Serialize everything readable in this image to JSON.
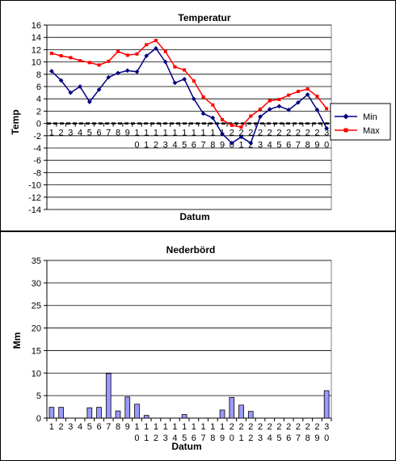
{
  "chart_data": [
    {
      "type": "line",
      "title": "Temperatur",
      "xlabel": "Datum",
      "ylabel": "Temp",
      "ylim": [
        -14,
        16
      ],
      "ystep": 2,
      "grid": true,
      "legend_position": "right",
      "x_tick_labels": [
        [
          "1",
          ""
        ],
        [
          "2",
          ""
        ],
        [
          "3",
          ""
        ],
        [
          "4",
          ""
        ],
        [
          "5",
          ""
        ],
        [
          "6",
          ""
        ],
        [
          "7",
          ""
        ],
        [
          "8",
          ""
        ],
        [
          "9",
          ""
        ],
        [
          "1",
          "0"
        ],
        [
          "1",
          "1"
        ],
        [
          "1",
          "2"
        ],
        [
          "1",
          "3"
        ],
        [
          "1",
          "4"
        ],
        [
          "1",
          "5"
        ],
        [
          "1",
          "6"
        ],
        [
          "1",
          "7"
        ],
        [
          "1",
          "8"
        ],
        [
          "1",
          "9"
        ],
        [
          "2",
          "0"
        ],
        [
          "2",
          "1"
        ],
        [
          "2",
          "2"
        ],
        [
          "2",
          "3"
        ],
        [
          "2",
          "4"
        ],
        [
          "2",
          "5"
        ],
        [
          "2",
          "6"
        ],
        [
          "2",
          "7"
        ],
        [
          "2",
          "8"
        ],
        [
          "2",
          "9"
        ],
        [
          "3",
          "0"
        ]
      ],
      "series": [
        {
          "name": "Min",
          "color": "#000080",
          "values": [
            8.5,
            7,
            5,
            6,
            3.5,
            5.5,
            7.5,
            8.2,
            8.6,
            8.4,
            11,
            12.2,
            10,
            6.6,
            7.2,
            4,
            1.6,
            0.9,
            -1.7,
            -3.2,
            -2.2,
            -3.2,
            1.1,
            2.3,
            2.8,
            2.2,
            3.4,
            4.7,
            2.2,
            -0.8
          ]
        },
        {
          "name": "Max",
          "color": "#ff0000",
          "values": [
            11.4,
            11,
            10.7,
            10.2,
            9.9,
            9.5,
            10.1,
            11.7,
            11.1,
            11.3,
            12.8,
            13.5,
            11.7,
            9.2,
            8.7,
            6.9,
            4.3,
            3,
            0.6,
            -0.3,
            -0.6,
            1.2,
            2.3,
            3.7,
            3.9,
            4.6,
            5.2,
            5.6,
            4.4,
            2.4
          ]
        }
      ]
    },
    {
      "type": "bar",
      "title": "Nederbörd",
      "xlabel": "Datum",
      "ylabel": "Mm",
      "ylim": [
        0,
        35
      ],
      "ystep": 5,
      "grid": true,
      "color": "#9999ff",
      "x_tick_labels": [
        [
          "1",
          ""
        ],
        [
          "2",
          ""
        ],
        [
          "3",
          ""
        ],
        [
          "4",
          ""
        ],
        [
          "5",
          ""
        ],
        [
          "6",
          ""
        ],
        [
          "7",
          ""
        ],
        [
          "8",
          ""
        ],
        [
          "9",
          ""
        ],
        [
          "1",
          "0"
        ],
        [
          "1",
          "1"
        ],
        [
          "1",
          "2"
        ],
        [
          "1",
          "3"
        ],
        [
          "1",
          "4"
        ],
        [
          "1",
          "5"
        ],
        [
          "1",
          "6"
        ],
        [
          "1",
          "7"
        ],
        [
          "1",
          "8"
        ],
        [
          "1",
          "9"
        ],
        [
          "2",
          "0"
        ],
        [
          "2",
          "1"
        ],
        [
          "2",
          "2"
        ],
        [
          "2",
          "3"
        ],
        [
          "2",
          "4"
        ],
        [
          "2",
          "5"
        ],
        [
          "2",
          "6"
        ],
        [
          "2",
          "7"
        ],
        [
          "2",
          "8"
        ],
        [
          "2",
          "9"
        ],
        [
          "3",
          "0"
        ]
      ],
      "values": [
        2.4,
        2.4,
        0,
        0,
        2.3,
        2.4,
        9.9,
        1.6,
        4.7,
        3.1,
        0.6,
        0,
        0,
        0,
        0.8,
        0,
        0,
        0,
        1.8,
        4.6,
        2.9,
        1.5,
        0,
        0,
        0,
        0,
        0,
        0,
        0,
        6.1
      ]
    }
  ]
}
